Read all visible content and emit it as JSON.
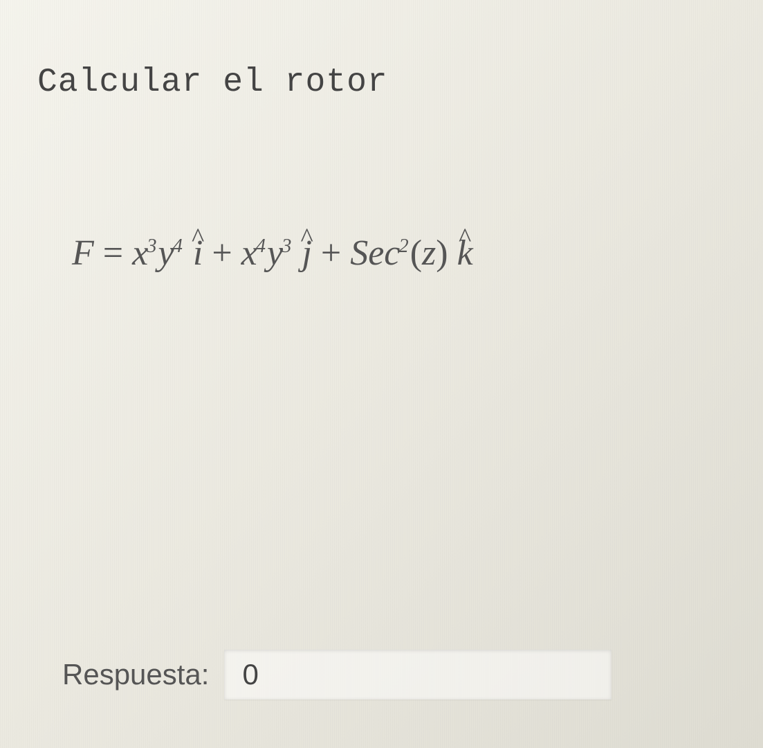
{
  "question": {
    "title": "Calcular el rotor",
    "formula": {
      "lhs_var": "F",
      "eq": " = ",
      "t1_base1": "x",
      "t1_exp1": "3",
      "t1_base2": "y",
      "t1_exp2": "4",
      "t1_vec": "i",
      "plus1": " + ",
      "t2_base1": "x",
      "t2_exp1": "4",
      "t2_base2": "y",
      "t2_exp2": "3",
      "t2_vec": "j",
      "plus2": " + ",
      "t3_func": "Sec",
      "t3_funcexp": "2",
      "t3_arg_open": "(",
      "t3_arg": "z",
      "t3_arg_close": ")",
      "t3_vec": "k"
    }
  },
  "answer": {
    "label": "Respuesta:",
    "value": "0"
  },
  "colors": {
    "text_title": "#444444",
    "text_formula": "#555555",
    "text_label": "#555555",
    "bg_start": "#f5f4ed",
    "bg_end": "#dedcd2",
    "input_bg": "rgba(255,255,255,0.5)"
  },
  "typography": {
    "title_font": "Courier New",
    "title_size_pt": 36,
    "formula_font": "Georgia (serif italic)",
    "formula_size_pt": 39,
    "label_font": "Arial",
    "label_size_pt": 32
  }
}
